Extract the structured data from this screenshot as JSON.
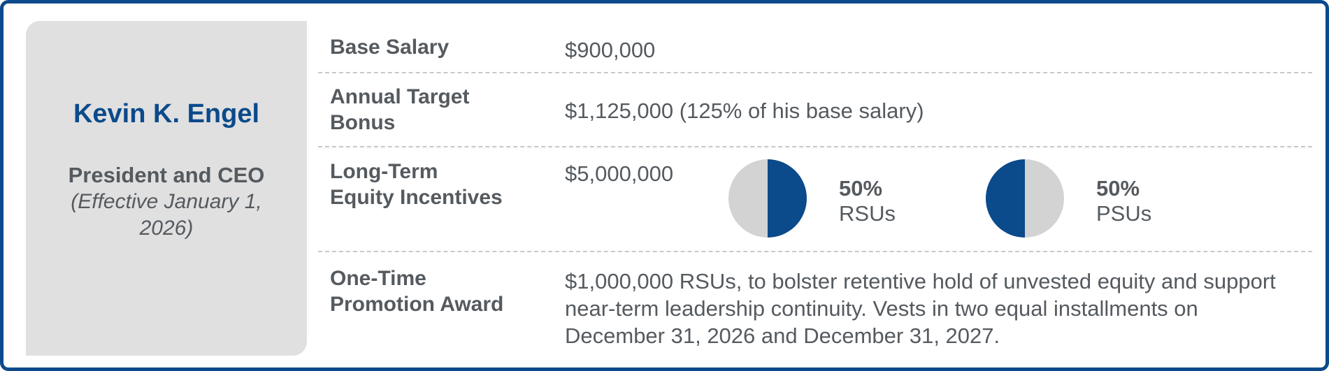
{
  "executive": {
    "name": "Kevin K. Engel",
    "title": "President and CEO",
    "effective": "(Effective January 1, 2026)"
  },
  "rows": {
    "base_salary": {
      "label": "Base Salary",
      "value": "$900,000"
    },
    "target_bonus": {
      "label_line1": "Annual Target",
      "label_line2": "Bonus",
      "value": "$1,125,000 (125% of his base salary)"
    },
    "ltei": {
      "label_line1": "Long-Term",
      "label_line2": "Equity Incentives",
      "value": "$5,000,000",
      "split": [
        {
          "pct": "50%",
          "label": "RSUs",
          "fraction": 0.5,
          "filled_side": "right"
        },
        {
          "pct": "50%",
          "label": "PSUs",
          "fraction": 0.5,
          "filled_side": "left"
        }
      ]
    },
    "promotion": {
      "label_line1": "One-Time",
      "label_line2": "Promotion Award",
      "value_line1": "$1,000,000 RSUs, to bolster retentive hold of unvested equity and support",
      "value_line2": "near-term leadership continuity. Vests in two equal installments on",
      "value_line3": "December 31, 2026 and December 31, 2027."
    }
  },
  "colors": {
    "accent": "#0b4a8b",
    "pie_gray": "#d3d3d3",
    "panel_gray": "#e0e0e0",
    "text": "#555a5f"
  }
}
